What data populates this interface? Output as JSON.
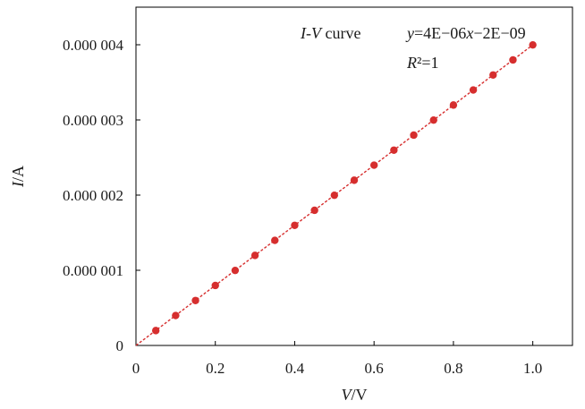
{
  "chart_data": {
    "type": "scatter",
    "title": "I-V curve",
    "xlabel": "V/V",
    "ylabel": "I/A",
    "xlim": [
      0,
      1.1
    ],
    "ylim": [
      0,
      4.5e-06
    ],
    "grid": false,
    "x_ticks": [
      0,
      0.2,
      0.4,
      0.6,
      0.8,
      1.0
    ],
    "x_tick_labels": [
      "0",
      "0.2",
      "0.4",
      "0.6",
      "0.8",
      "1.0"
    ],
    "y_ticks": [
      0,
      1e-06,
      2e-06,
      3e-06,
      4e-06
    ],
    "y_tick_labels": [
      "0",
      "0.000 001",
      "0.000 002",
      "0.000 003",
      "0.000 004"
    ],
    "series": [
      {
        "x": [
          0.05,
          0.1,
          0.15,
          0.2,
          0.25,
          0.3,
          0.35,
          0.4,
          0.45,
          0.5,
          0.55,
          0.6,
          0.65,
          0.7,
          0.75,
          0.8,
          0.85,
          0.9,
          0.95,
          1.0
        ],
        "y": [
          1.98e-07,
          3.98e-07,
          5.98e-07,
          7.98e-07,
          9.98e-07,
          1.198e-06,
          1.398e-06,
          1.598e-06,
          1.798e-06,
          1.998e-06,
          2.198e-06,
          2.398e-06,
          2.598e-06,
          2.798e-06,
          2.998e-06,
          3.198e-06,
          3.398e-06,
          3.598e-06,
          3.798e-06,
          3.998e-06
        ],
        "color": "#d62e2e"
      }
    ],
    "trendline": {
      "slope": 4e-06,
      "intercept": -2e-09,
      "x_range": [
        0,
        1.0
      ],
      "color": "#d62e2e",
      "equation_label": "y=4E−06x−2E−09",
      "r2_label": "R²=1"
    }
  }
}
